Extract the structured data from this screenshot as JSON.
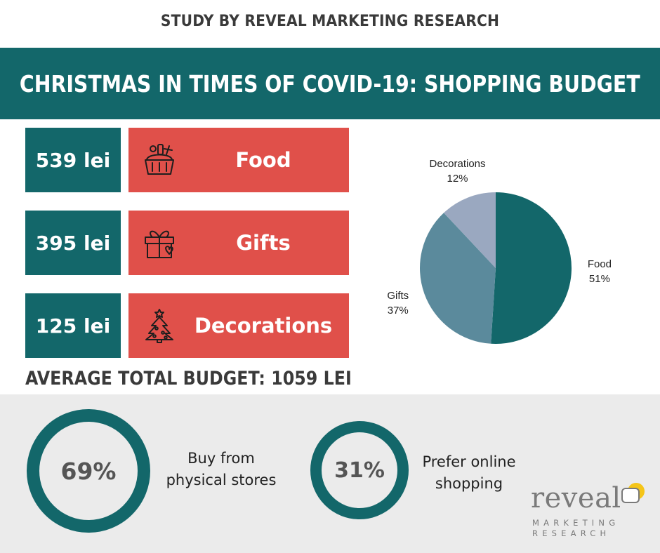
{
  "header": {
    "study_line": "STUDY BY REVEAL MARKETING RESEARCH",
    "title": "CHRISTMAS IN TIMES OF COVID-19: SHOPPING BUDGET"
  },
  "budget": {
    "items": [
      {
        "amount": "539 lei",
        "label": "Food",
        "icon": "food-basket-icon"
      },
      {
        "amount": "395 lei",
        "label": "Gifts",
        "icon": "gift-box-icon"
      },
      {
        "amount": "125 lei",
        "label": "Decorations",
        "icon": "christmas-tree-icon"
      }
    ],
    "total_line": "AVERAGE TOTAL BUDGET: 1059 LEI"
  },
  "chart_data": {
    "type": "pie",
    "title": "",
    "slices": [
      {
        "name": "Food",
        "value": 51,
        "label": "51%",
        "color": "#13676a"
      },
      {
        "name": "Gifts",
        "value": 37,
        "label": "37%",
        "color": "#5b8a9c"
      },
      {
        "name": "Decorations",
        "value": 12,
        "label": "12%",
        "color": "#9aa8c0"
      }
    ],
    "start_angle_deg": 0,
    "direction": "clockwise"
  },
  "stats": [
    {
      "percent": "69%",
      "lines": [
        "Buy from",
        "physical stores"
      ]
    },
    {
      "percent": "31%",
      "lines": [
        "Prefer online",
        "shopping"
      ]
    }
  ],
  "logo": {
    "word": "reveal",
    "sub_line_1": "MARKETING",
    "sub_line_2": "RESEARCH"
  },
  "colors": {
    "teal": "#13676a",
    "red": "#e0504a",
    "gray_band": "#ebebeb",
    "logo_yellow": "#f5c518"
  }
}
